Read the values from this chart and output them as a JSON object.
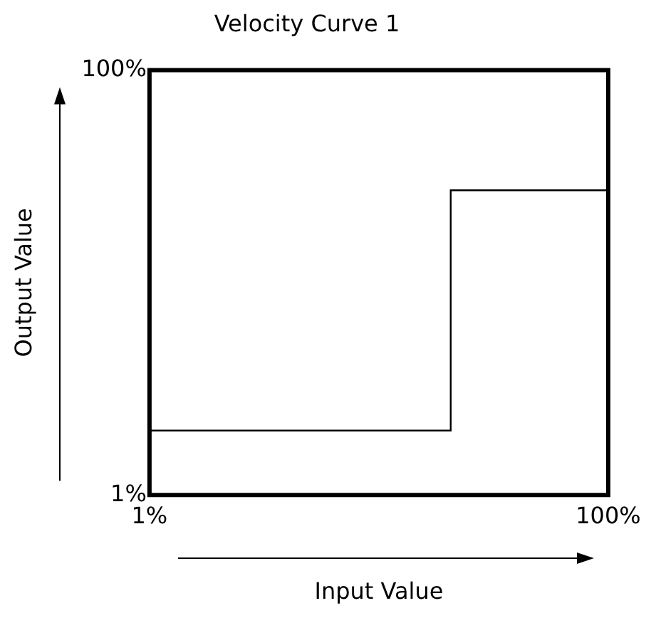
{
  "chart_data": {
    "type": "step",
    "title": "Velocity Curve 1",
    "xlabel": "Input Value",
    "ylabel": "Output Value",
    "x": [
      1,
      66,
      100
    ],
    "values": [
      16,
      72,
      72
    ],
    "color": "#000000",
    "xlim": [
      1,
      100
    ],
    "ylim": [
      1,
      100
    ],
    "xticks": [
      {
        "value": 1,
        "label": "1%"
      },
      {
        "value": 100,
        "label": "100%"
      }
    ],
    "yticks": [
      {
        "value": 1,
        "label": "1%"
      },
      {
        "value": 100,
        "label": "100%"
      }
    ]
  }
}
